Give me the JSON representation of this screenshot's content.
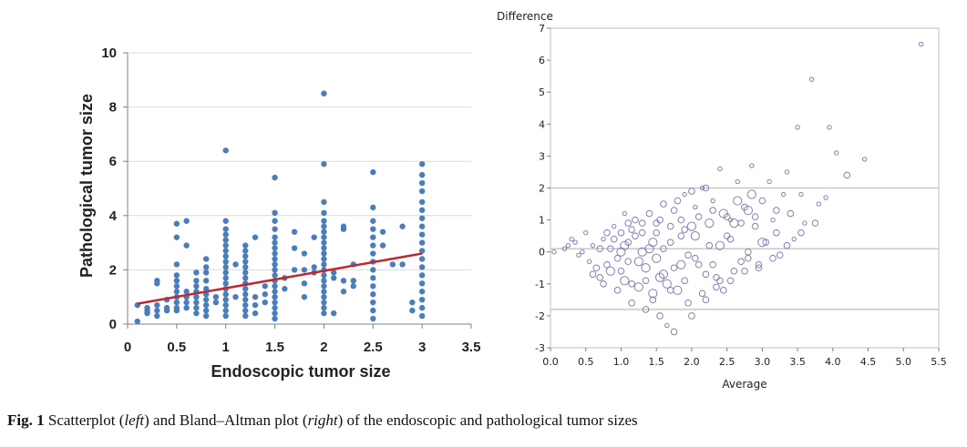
{
  "chart_data": [
    {
      "type": "scatter",
      "xlabel": "Endoscopic tumor size",
      "ylabel": "Pathological tumor size",
      "xlim": [
        0,
        3.5
      ],
      "ylim": [
        0,
        10
      ],
      "xticks": [
        "0",
        "0.5",
        "1",
        "1.5",
        "2",
        "2.5",
        "3",
        "3.5"
      ],
      "yticks": [
        "0",
        "2",
        "4",
        "6",
        "8",
        "10"
      ],
      "grid": "horizontal",
      "point_color": "#4a7ebb",
      "fit_color": "#c0282d",
      "fit_line": {
        "x": [
          0.1,
          3.0
        ],
        "y": [
          0.75,
          2.6
        ]
      },
      "points": [
        {
          "x": 0.1,
          "y": [
            0.1,
            0.7
          ]
        },
        {
          "x": 0.2,
          "y": [
            0.4,
            0.5,
            0.6
          ]
        },
        {
          "x": 0.3,
          "y": [
            0.3,
            0.5,
            0.7,
            1.5,
            1.6
          ]
        },
        {
          "x": 0.4,
          "y": [
            0.5,
            0.6,
            0.9
          ]
        },
        {
          "x": 0.5,
          "y": [
            0.5,
            0.6,
            0.8,
            1.0,
            1.2,
            1.4,
            1.6,
            1.8,
            2.2,
            3.2,
            3.7
          ]
        },
        {
          "x": 0.6,
          "y": [
            0.6,
            0.8,
            1.0,
            1.2,
            2.9,
            3.8
          ]
        },
        {
          "x": 0.7,
          "y": [
            0.4,
            0.6,
            0.8,
            1.0,
            1.2,
            1.4,
            1.6,
            1.9
          ]
        },
        {
          "x": 0.8,
          "y": [
            0.3,
            0.5,
            0.7,
            0.9,
            1.1,
            1.3,
            1.6,
            1.9,
            2.1,
            2.4
          ]
        },
        {
          "x": 0.9,
          "y": [
            0.8,
            1.0
          ]
        },
        {
          "x": 1.0,
          "y": [
            0.3,
            0.5,
            0.7,
            0.9,
            1.1,
            1.3,
            1.5,
            1.7,
            1.9,
            2.1,
            2.3,
            2.5,
            2.7,
            2.9,
            3.1,
            3.3,
            3.5,
            3.8,
            6.4
          ]
        },
        {
          "x": 1.1,
          "y": [
            1.0,
            2.2
          ]
        },
        {
          "x": 1.2,
          "y": [
            0.3,
            0.5,
            0.7,
            0.9,
            1.1,
            1.3,
            1.5,
            1.7,
            1.9,
            2.1,
            2.3,
            2.5,
            2.7,
            2.9
          ]
        },
        {
          "x": 1.3,
          "y": [
            0.4,
            0.7,
            1.0,
            3.2
          ]
        },
        {
          "x": 1.4,
          "y": [
            0.8,
            1.1,
            1.4
          ]
        },
        {
          "x": 1.5,
          "y": [
            0.2,
            0.4,
            0.6,
            0.8,
            1.0,
            1.2,
            1.4,
            1.6,
            1.8,
            2.0,
            2.2,
            2.4,
            2.6,
            2.8,
            3.0,
            3.2,
            3.5,
            3.8,
            4.1,
            5.4
          ]
        },
        {
          "x": 1.6,
          "y": [
            1.3,
            1.7
          ]
        },
        {
          "x": 1.7,
          "y": [
            2.0,
            2.8,
            3.4
          ]
        },
        {
          "x": 1.8,
          "y": [
            1.0,
            1.5,
            2.0,
            2.6
          ]
        },
        {
          "x": 1.9,
          "y": [
            1.9,
            2.1,
            3.2
          ]
        },
        {
          "x": 2.0,
          "y": [
            0.4,
            0.6,
            0.8,
            1.0,
            1.2,
            1.4,
            1.6,
            1.8,
            2.0,
            2.2,
            2.4,
            2.6,
            2.8,
            3.0,
            3.2,
            3.4,
            3.6,
            3.8,
            4.1,
            4.5,
            5.9,
            8.5
          ]
        },
        {
          "x": 2.1,
          "y": [
            0.4,
            1.7,
            1.9
          ]
        },
        {
          "x": 2.2,
          "y": [
            1.2,
            1.6,
            3.5,
            3.6
          ]
        },
        {
          "x": 2.3,
          "y": [
            1.4,
            1.6,
            2.2
          ]
        },
        {
          "x": 2.5,
          "y": [
            0.2,
            0.5,
            0.8,
            1.1,
            1.4,
            1.7,
            2.0,
            2.3,
            2.6,
            2.9,
            3.2,
            3.5,
            3.8,
            4.3,
            5.6
          ]
        },
        {
          "x": 2.6,
          "y": [
            2.9,
            3.4
          ]
        },
        {
          "x": 2.7,
          "y": [
            2.2
          ]
        },
        {
          "x": 2.8,
          "y": [
            2.2,
            3.6
          ]
        },
        {
          "x": 2.9,
          "y": [
            0.5,
            0.8
          ]
        },
        {
          "x": 3.0,
          "y": [
            0.3,
            0.6,
            0.9,
            1.2,
            1.5,
            1.8,
            2.1,
            2.4,
            2.7,
            3.0,
            3.3,
            3.6,
            3.9,
            4.2,
            4.5,
            4.9,
            5.2,
            5.5,
            5.9
          ]
        }
      ]
    },
    {
      "type": "scatter",
      "ylabel": "Difference",
      "xlabel": "Average",
      "xlim": [
        0,
        5.5
      ],
      "ylim": [
        -3,
        7
      ],
      "xticks": [
        "0.0",
        "0.5",
        "1.0",
        "1.5",
        "2.0",
        "2.5",
        "3.0",
        "3.5",
        "4.0",
        "4.5",
        "5.0",
        "5.5"
      ],
      "yticks": [
        "-3",
        "-2",
        "-1",
        "0",
        "1",
        "2",
        "3",
        "4",
        "5",
        "6",
        "7"
      ],
      "reference_lines": [
        2.0,
        0.1,
        -1.8
      ],
      "point_color": "#8080b8",
      "line_color": "#c8c8c8",
      "points": [
        [
          0.05,
          0.0,
          1
        ],
        [
          0.2,
          0.1,
          1
        ],
        [
          0.25,
          0.2,
          1
        ],
        [
          0.3,
          0.4,
          1
        ],
        [
          0.35,
          0.3,
          1
        ],
        [
          0.4,
          -0.1,
          1
        ],
        [
          0.45,
          0.0,
          1
        ],
        [
          0.5,
          0.6,
          1
        ],
        [
          0.55,
          -0.3,
          1
        ],
        [
          0.6,
          0.2,
          1
        ],
        [
          0.65,
          -0.5,
          2
        ],
        [
          0.7,
          -0.8,
          2
        ],
        [
          0.75,
          0.4,
          1
        ],
        [
          0.8,
          -0.4,
          2
        ],
        [
          0.85,
          0.1,
          2
        ],
        [
          0.9,
          0.8,
          1
        ],
        [
          0.95,
          -0.2,
          2
        ],
        [
          1.0,
          0.0,
          3
        ],
        [
          1.0,
          -0.6,
          2
        ],
        [
          1.05,
          1.2,
          1
        ],
        [
          1.1,
          0.3,
          2
        ],
        [
          1.15,
          -1.0,
          2
        ],
        [
          1.2,
          0.5,
          2
        ],
        [
          1.25,
          -0.3,
          3
        ],
        [
          1.3,
          0.9,
          2
        ],
        [
          1.35,
          -0.9,
          2
        ],
        [
          1.4,
          0.1,
          3
        ],
        [
          1.45,
          -1.5,
          2
        ],
        [
          1.5,
          0.6,
          2
        ],
        [
          1.5,
          -0.2,
          3
        ],
        [
          1.55,
          1.0,
          2
        ],
        [
          1.6,
          -0.7,
          3
        ],
        [
          1.65,
          -2.3,
          1
        ],
        [
          1.7,
          0.3,
          2
        ],
        [
          1.75,
          1.3,
          2
        ],
        [
          1.8,
          -1.2,
          3
        ],
        [
          1.85,
          0.5,
          2
        ],
        [
          1.9,
          1.8,
          1
        ],
        [
          1.95,
          -0.1,
          2
        ],
        [
          2.0,
          0.8,
          3
        ],
        [
          2.0,
          -2.0,
          2
        ],
        [
          2.05,
          1.4,
          1
        ],
        [
          2.1,
          -0.4,
          2
        ],
        [
          2.15,
          2.0,
          1
        ],
        [
          2.2,
          -1.5,
          2
        ],
        [
          2.25,
          0.2,
          2
        ],
        [
          2.3,
          1.6,
          1
        ],
        [
          2.35,
          -0.8,
          2
        ],
        [
          2.4,
          2.6,
          1
        ],
        [
          2.45,
          -1.2,
          2
        ],
        [
          2.5,
          0.5,
          2
        ],
        [
          2.55,
          1.0,
          1
        ],
        [
          2.6,
          -0.6,
          2
        ],
        [
          2.65,
          2.2,
          1
        ],
        [
          2.7,
          -0.3,
          2
        ],
        [
          2.75,
          1.4,
          2
        ],
        [
          2.8,
          0.0,
          2
        ],
        [
          2.85,
          2.7,
          1
        ],
        [
          2.9,
          0.8,
          2
        ],
        [
          2.95,
          -0.5,
          2
        ],
        [
          3.0,
          1.6,
          2
        ],
        [
          3.05,
          0.3,
          2
        ],
        [
          3.1,
          2.2,
          1
        ],
        [
          3.15,
          1.0,
          1
        ],
        [
          3.2,
          0.6,
          2
        ],
        [
          3.25,
          -0.1,
          2
        ],
        [
          3.3,
          1.8,
          1
        ],
        [
          3.35,
          2.5,
          1
        ],
        [
          3.4,
          1.2,
          2
        ],
        [
          3.45,
          0.4,
          1
        ],
        [
          3.5,
          3.9,
          1
        ],
        [
          3.55,
          1.8,
          1
        ],
        [
          3.6,
          0.9,
          1
        ],
        [
          3.7,
          5.4,
          1
        ],
        [
          3.8,
          1.5,
          1
        ],
        [
          3.9,
          1.7,
          1
        ],
        [
          3.95,
          3.9,
          1
        ],
        [
          4.05,
          3.1,
          1
        ],
        [
          4.2,
          2.4,
          2
        ],
        [
          4.45,
          2.9,
          1
        ],
        [
          5.25,
          6.5,
          1
        ],
        [
          0.9,
          0.4,
          2
        ],
        [
          1.1,
          -0.3,
          2
        ],
        [
          1.3,
          0.0,
          3
        ],
        [
          1.45,
          0.3,
          3
        ],
        [
          1.6,
          0.1,
          2
        ],
        [
          1.75,
          -0.5,
          2
        ],
        [
          1.9,
          -0.9,
          2
        ],
        [
          2.05,
          -0.2,
          2
        ],
        [
          2.2,
          -0.7,
          2
        ],
        [
          2.4,
          -0.9,
          2
        ],
        [
          0.7,
          0.1,
          2
        ],
        [
          0.8,
          0.6,
          2
        ],
        [
          1.0,
          0.6,
          2
        ],
        [
          1.2,
          1.0,
          2
        ],
        [
          1.4,
          1.2,
          2
        ],
        [
          1.6,
          1.5,
          2
        ],
        [
          1.8,
          1.6,
          2
        ],
        [
          2.0,
          1.9,
          2
        ],
        [
          2.2,
          2.0,
          2
        ],
        [
          2.4,
          0.2,
          3
        ],
        [
          2.6,
          0.9,
          3
        ],
        [
          2.8,
          1.3,
          3
        ],
        [
          0.6,
          -0.7,
          2
        ],
        [
          0.75,
          -1.0,
          2
        ],
        [
          0.95,
          -1.2,
          2
        ],
        [
          1.15,
          -1.6,
          2
        ],
        [
          1.35,
          -1.8,
          2
        ],
        [
          1.55,
          -2.0,
          2
        ],
        [
          1.75,
          -2.5,
          2
        ],
        [
          1.95,
          -1.6,
          2
        ],
        [
          2.15,
          -1.3,
          2
        ],
        [
          2.35,
          -1.1,
          2
        ],
        [
          2.55,
          -0.9,
          2
        ],
        [
          2.75,
          -0.6,
          2
        ],
        [
          2.95,
          -0.4,
          2
        ],
        [
          3.15,
          -0.2,
          2
        ],
        [
          3.35,
          0.2,
          2
        ],
        [
          3.55,
          0.6,
          2
        ],
        [
          3.75,
          0.9,
          2
        ],
        [
          1.1,
          0.9,
          2
        ],
        [
          1.3,
          0.6,
          2
        ],
        [
          1.5,
          0.9,
          2
        ],
        [
          1.7,
          0.8,
          2
        ],
        [
          1.9,
          0.7,
          2
        ],
        [
          2.1,
          1.1,
          2
        ],
        [
          2.3,
          1.3,
          2
        ],
        [
          2.5,
          1.1,
          2
        ],
        [
          2.7,
          0.9,
          2
        ],
        [
          2.9,
          1.1,
          2
        ],
        [
          0.85,
          -0.6,
          3
        ],
        [
          1.05,
          -0.9,
          3
        ],
        [
          1.25,
          -1.1,
          3
        ],
        [
          1.45,
          -1.3,
          3
        ],
        [
          1.65,
          -1.0,
          3
        ],
        [
          1.85,
          -0.4,
          3
        ],
        [
          2.05,
          0.5,
          3
        ],
        [
          2.25,
          0.9,
          3
        ],
        [
          2.45,
          1.2,
          3
        ],
        [
          2.65,
          1.6,
          3
        ],
        [
          2.85,
          1.8,
          3
        ],
        [
          1.05,
          0.2,
          3
        ],
        [
          1.15,
          0.7,
          2
        ],
        [
          1.35,
          -0.5,
          3
        ],
        [
          1.55,
          -0.8,
          3
        ],
        [
          1.7,
          -1.2,
          2
        ],
        [
          1.85,
          1.0,
          2
        ],
        [
          2.3,
          -0.4,
          2
        ],
        [
          2.55,
          0.4,
          2
        ],
        [
          2.8,
          -0.2,
          2
        ],
        [
          3.0,
          0.3,
          3
        ],
        [
          3.2,
          1.3,
          2
        ]
      ]
    }
  ],
  "caption": {
    "fig_label": "Fig. 1",
    "text_1": "  Scatterplot (",
    "left": "left",
    "text_2": ") and Bland–Altman plot (",
    "right": "right",
    "text_3": ") of the endoscopic and pathological tumor sizes"
  }
}
